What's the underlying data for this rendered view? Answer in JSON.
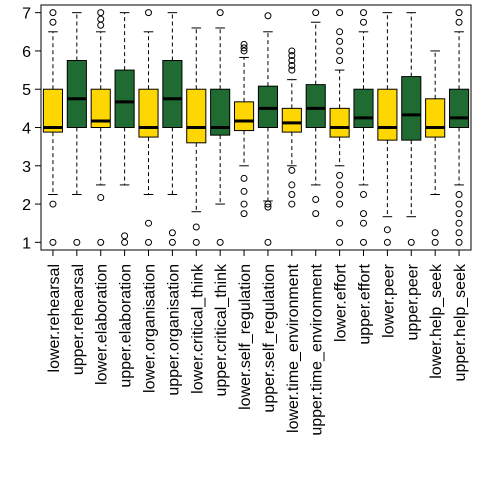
{
  "chart_data": {
    "type": "boxplot",
    "title": "",
    "xlabel": "",
    "ylabel": "",
    "ylim": [
      0.8,
      7.2
    ],
    "yticks": [
      1,
      2,
      3,
      4,
      5,
      6,
      7
    ],
    "grid": false,
    "legend": "none",
    "colors": {
      "lower": "#FFD700",
      "upper": "#1F6B32"
    },
    "categories": [
      "lower.rehearsal",
      "upper.rehearsal",
      "lower.elaboration",
      "upper.elaboration",
      "lower.organisation",
      "upper.organisation",
      "lower.critical_think",
      "upper.critical_think",
      "lower.self_regulation",
      "upper.self_regulation",
      "lower.time_environment",
      "upper.time_environment",
      "lower.effort",
      "upper.effort",
      "lower.peer",
      "upper.peer",
      "lower.help_seek",
      "upper.help_seek"
    ],
    "boxes": [
      {
        "group": "lower",
        "min": 2.25,
        "q1": 3.88,
        "median": 4.0,
        "q3": 5.0,
        "max": 6.5,
        "outliers": [
          1,
          2,
          6.75,
          7
        ]
      },
      {
        "group": "upper",
        "min": 2.25,
        "q1": 4.0,
        "median": 4.75,
        "q3": 5.75,
        "max": 7,
        "outliers": [
          1
        ]
      },
      {
        "group": "lower",
        "min": 2.5,
        "q1": 4.0,
        "median": 4.17,
        "q3": 5.0,
        "max": 6.5,
        "outliers": [
          1,
          2.17,
          6.67,
          6.83,
          7
        ]
      },
      {
        "group": "upper",
        "min": 2.5,
        "q1": 4.0,
        "median": 4.67,
        "q3": 5.5,
        "max": 7,
        "outliers": [
          1,
          1.17
        ]
      },
      {
        "group": "lower",
        "min": 2.25,
        "q1": 3.75,
        "median": 4.0,
        "q3": 5.0,
        "max": 6.5,
        "outliers": [
          1,
          1.5,
          7
        ]
      },
      {
        "group": "upper",
        "min": 2.25,
        "q1": 4.0,
        "median": 4.75,
        "q3": 5.75,
        "max": 7,
        "outliers": [
          1,
          1.25
        ]
      },
      {
        "group": "lower",
        "min": 1.8,
        "q1": 3.6,
        "median": 4.0,
        "q3": 5.0,
        "max": 6.6,
        "outliers": [
          1,
          1.4
        ]
      },
      {
        "group": "upper",
        "min": 2.0,
        "q1": 3.8,
        "median": 4.0,
        "q3": 5.0,
        "max": 6.6,
        "outliers": [
          1,
          7
        ]
      },
      {
        "group": "lower",
        "min": 3.0,
        "q1": 3.92,
        "median": 4.17,
        "q3": 4.67,
        "max": 5.83,
        "outliers": [
          1.75,
          2.0,
          2.33,
          2.67,
          6.0,
          6.08,
          6.17
        ]
      },
      {
        "group": "upper",
        "min": 2.08,
        "q1": 4.0,
        "median": 4.5,
        "q3": 5.08,
        "max": 6.5,
        "outliers": [
          1,
          1.92,
          2.0,
          6.92
        ]
      },
      {
        "group": "lower",
        "min": 3.0,
        "q1": 3.88,
        "median": 4.12,
        "q3": 4.5,
        "max": 5.25,
        "outliers": [
          2.0,
          2.25,
          2.5,
          2.88,
          5.5,
          5.62,
          5.75,
          5.88,
          6.0
        ]
      },
      {
        "group": "upper",
        "min": 2.5,
        "q1": 4.0,
        "median": 4.5,
        "q3": 5.12,
        "max": 6.75,
        "outliers": [
          1.75,
          2.12,
          7
        ]
      },
      {
        "group": "lower",
        "min": 3.0,
        "q1": 3.75,
        "median": 4.0,
        "q3": 4.5,
        "max": 5.5,
        "outliers": [
          1,
          1.5,
          2.0,
          2.25,
          2.5,
          2.75,
          5.75,
          6.0,
          6.25,
          6.5,
          7
        ]
      },
      {
        "group": "upper",
        "min": 2.5,
        "q1": 4.0,
        "median": 4.25,
        "q3": 5.0,
        "max": 6.5,
        "outliers": [
          1,
          1.5,
          1.75,
          2.25,
          6.75,
          7
        ]
      },
      {
        "group": "lower",
        "min": 1.67,
        "q1": 3.67,
        "median": 4.0,
        "q3": 5.0,
        "max": 7,
        "outliers": [
          1,
          1.33
        ]
      },
      {
        "group": "upper",
        "min": 1.67,
        "q1": 3.67,
        "median": 4.33,
        "q3": 5.33,
        "max": 7,
        "outliers": [
          1
        ]
      },
      {
        "group": "lower",
        "min": 2.25,
        "q1": 3.75,
        "median": 4.0,
        "q3": 4.75,
        "max": 6.0,
        "outliers": [
          1,
          1.25
        ]
      },
      {
        "group": "upper",
        "min": 2.5,
        "q1": 4.0,
        "median": 4.25,
        "q3": 5.0,
        "max": 6.5,
        "outliers": [
          1,
          1.25,
          1.5,
          1.75,
          2.0,
          2.25,
          6.75,
          7
        ]
      }
    ]
  }
}
